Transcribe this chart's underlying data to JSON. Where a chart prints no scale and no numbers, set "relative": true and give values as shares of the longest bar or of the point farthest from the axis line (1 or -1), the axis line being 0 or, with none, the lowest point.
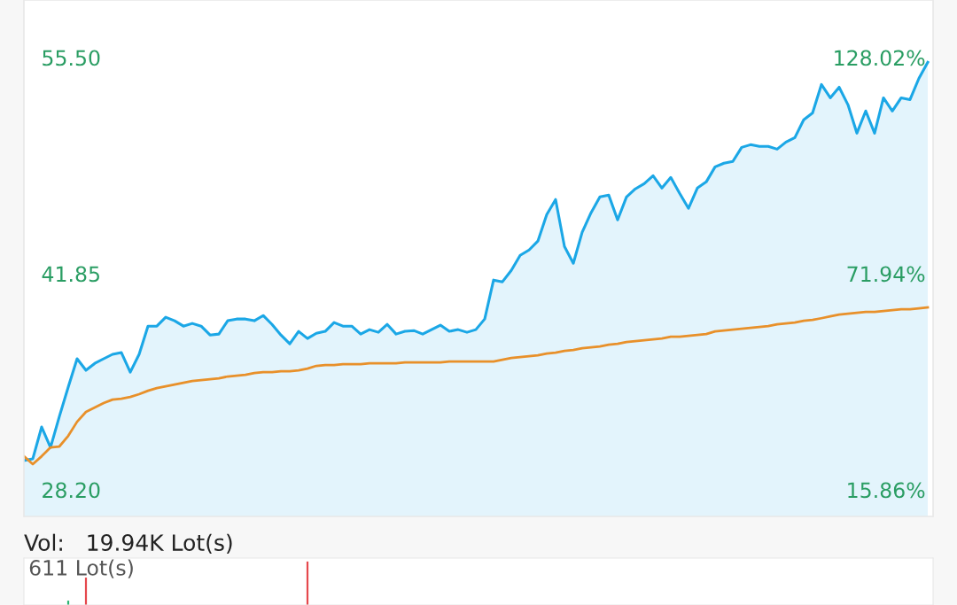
{
  "chart_data": [
    {
      "type": "line",
      "categories": [
        null,
        null,
        null,
        null,
        null,
        null,
        null,
        null,
        null,
        null,
        null,
        null,
        null,
        null,
        null,
        null,
        null,
        null,
        null,
        null,
        null,
        null,
        null,
        null,
        null,
        null,
        null,
        null,
        null,
        null,
        null,
        null,
        null,
        null,
        null,
        null,
        null,
        null,
        null,
        null,
        null,
        null,
        null,
        null,
        null,
        null,
        null,
        null,
        null,
        null,
        null,
        null,
        null,
        null,
        null,
        null,
        null,
        null,
        null,
        null,
        null,
        null,
        null,
        null,
        null,
        null,
        null,
        null,
        null,
        null,
        null,
        null,
        null,
        null,
        null,
        null,
        null,
        null,
        null,
        null,
        null,
        null,
        null,
        null,
        null,
        null,
        null,
        null,
        null,
        null,
        null,
        null,
        null,
        null,
        null,
        null,
        null,
        null,
        null,
        null,
        null,
        null,
        null
      ],
      "series": [
        {
          "type": "area",
          "color": "#1ba7e6",
          "values": [
            30.05,
            30.16,
            32.17,
            30.88,
            32.84,
            34.69,
            36.48,
            35.75,
            36.19,
            36.48,
            36.76,
            36.87,
            35.63,
            36.76,
            38.54,
            38.54,
            39.1,
            38.88,
            38.54,
            38.71,
            38.54,
            37.98,
            38.04,
            38.88,
            38.99,
            38.99,
            38.88,
            39.21,
            38.65,
            37.98,
            37.42,
            38.21,
            37.76,
            38.09,
            38.21,
            38.77,
            38.54,
            38.54,
            38.04,
            38.32,
            38.15,
            38.65,
            38.04,
            38.21,
            38.26,
            38.04,
            38.32,
            38.6,
            38.21,
            38.32,
            38.15,
            38.32,
            38.99,
            41.45,
            41.34,
            42.06,
            43.01,
            43.35,
            43.91,
            45.58,
            46.54,
            43.57,
            42.51,
            44.47,
            45.7,
            46.7,
            46.81,
            45.25,
            46.7,
            47.21,
            47.54,
            48.04,
            47.26,
            47.93,
            46.93,
            45.98,
            47.26,
            47.65,
            48.6,
            48.83,
            48.94,
            49.83,
            50.0,
            49.89,
            49.89,
            49.72,
            50.17,
            50.45,
            51.57,
            52.01,
            53.8,
            52.96,
            53.63,
            52.52,
            50.73,
            52.13,
            50.73,
            52.96,
            52.13,
            52.96,
            52.85,
            54.19,
            55.2
          ]
        },
        {
          "type": "line",
          "color": "#e8902a",
          "values": [
            30.32,
            29.82,
            30.32,
            30.88,
            30.94,
            31.61,
            32.5,
            33.12,
            33.4,
            33.68,
            33.9,
            33.96,
            34.07,
            34.24,
            34.46,
            34.63,
            34.74,
            34.85,
            34.96,
            35.08,
            35.13,
            35.19,
            35.24,
            35.36,
            35.41,
            35.47,
            35.58,
            35.63,
            35.63,
            35.69,
            35.69,
            35.75,
            35.86,
            36.03,
            36.08,
            36.08,
            36.14,
            36.14,
            36.14,
            36.19,
            36.19,
            36.19,
            36.19,
            36.25,
            36.25,
            36.25,
            36.25,
            36.25,
            36.31,
            36.31,
            36.31,
            36.31,
            36.31,
            36.31,
            36.42,
            36.53,
            36.59,
            36.64,
            36.7,
            36.81,
            36.87,
            36.98,
            37.03,
            37.14,
            37.2,
            37.26,
            37.37,
            37.42,
            37.54,
            37.59,
            37.65,
            37.7,
            37.76,
            37.87,
            37.87,
            37.93,
            37.98,
            38.04,
            38.21,
            38.26,
            38.32,
            38.37,
            38.43,
            38.49,
            38.54,
            38.65,
            38.71,
            38.77,
            38.88,
            38.93,
            39.04,
            39.16,
            39.27,
            39.32,
            39.38,
            39.44,
            39.44,
            39.49,
            39.55,
            39.6,
            39.6,
            39.66,
            39.72
          ]
        }
      ],
      "ylim": [
        26.52,
        59.14
      ],
      "yticks": [
        {
          "value": 28.2,
          "label": "28.20"
        },
        41.85,
        {
          "value": 55.5,
          "label": "55.50"
        }
      ],
      "y2lim": [
        8.96,
        142.96
      ],
      "y2ticks": [
        {
          "value": 15.86,
          "label": "15.86%"
        },
        {
          "value": 71.94,
          "label": "71.94%"
        },
        {
          "value": 128.02,
          "label": "128.02%"
        }
      ],
      "tick_labels": "y",
      "grid": false
    },
    {
      "type": "bar",
      "relative": true,
      "title": "Vol:   19.94K Lot(s)",
      "annotations": [
        "611 Lot(s)"
      ],
      "categories": [
        null,
        null,
        null,
        null,
        null,
        null,
        null,
        null,
        null,
        null,
        null,
        null,
        null,
        null,
        null,
        null,
        null,
        null,
        null,
        null,
        null,
        null,
        null,
        null,
        null,
        null,
        null,
        null,
        null,
        null,
        null,
        null,
        null,
        null,
        null,
        null,
        null,
        null,
        null,
        null,
        null,
        null,
        null,
        null,
        null,
        null,
        null,
        null,
        null,
        null,
        null,
        null,
        null,
        null,
        null,
        null,
        null,
        null,
        null,
        null,
        null,
        null,
        null,
        null,
        null,
        null,
        null,
        null,
        null,
        null,
        null,
        null,
        null,
        null,
        null,
        null,
        null,
        null,
        null,
        null,
        null,
        null,
        null,
        null,
        null,
        null,
        null,
        null,
        null,
        null,
        null,
        null,
        null,
        null,
        null,
        null,
        null,
        null,
        null,
        null,
        null,
        null,
        null
      ],
      "series": [
        {
          "color": "#2bb673",
          "values": [
            null,
            null,
            null,
            null,
            null,
            0.1,
            null,
            null,
            null,
            null,
            null,
            null,
            null,
            null,
            null,
            null,
            null,
            null,
            null,
            null,
            null,
            null,
            null,
            null,
            null,
            null,
            null,
            null,
            null,
            null,
            null,
            null,
            null,
            null,
            null,
            null,
            null,
            null,
            null,
            null,
            null,
            null,
            null,
            null,
            null,
            null,
            null,
            null,
            null,
            null,
            null,
            null,
            null,
            null,
            null,
            null,
            null,
            null,
            null,
            null,
            null,
            null,
            null,
            null,
            null,
            null,
            null,
            null,
            null,
            null,
            null,
            null,
            null,
            null,
            null,
            null,
            null,
            null,
            null,
            null,
            null,
            null,
            null,
            null,
            null,
            null,
            null,
            null,
            null,
            null,
            null,
            null,
            null,
            null,
            null,
            null,
            null,
            null,
            null,
            null,
            null,
            null,
            null
          ]
        },
        {
          "color": "#e5484d",
          "values": [
            null,
            null,
            null,
            null,
            null,
            null,
            null,
            0.63,
            null,
            null,
            null,
            null,
            null,
            null,
            null,
            null,
            null,
            null,
            null,
            null,
            null,
            null,
            null,
            null,
            null,
            null,
            null,
            null,
            null,
            null,
            null,
            null,
            1,
            null,
            null,
            null,
            null,
            null,
            null,
            null,
            null,
            null,
            null,
            null,
            null,
            null,
            null,
            null,
            null,
            null,
            null,
            null,
            null,
            null,
            null,
            null,
            null,
            null,
            null,
            null,
            null,
            null,
            null,
            null,
            null,
            null,
            null,
            null,
            null,
            null,
            null,
            null,
            null,
            null,
            null,
            null,
            null,
            null,
            null,
            null,
            null,
            null,
            null,
            null,
            null,
            null,
            null,
            null,
            null,
            null,
            null,
            null,
            null,
            null,
            null,
            null,
            null,
            null,
            null,
            null,
            null,
            null,
            null
          ]
        }
      ],
      "tick_labels": false
    }
  ]
}
